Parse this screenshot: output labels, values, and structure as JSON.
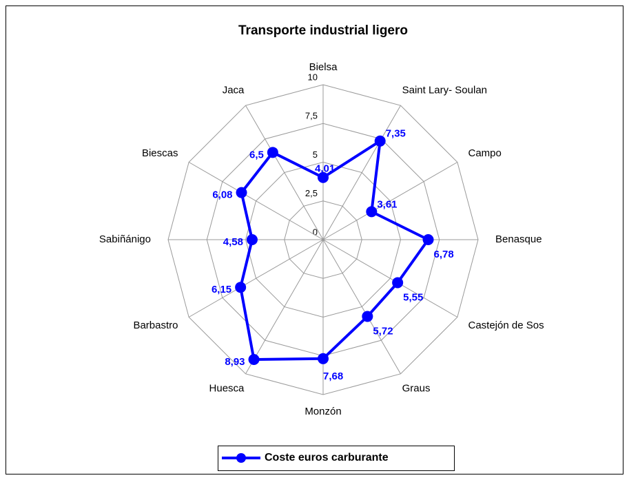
{
  "chart_data": {
    "type": "radar",
    "title": "Transporte industrial ligero",
    "categories": [
      "Bielsa",
      "Saint Lary- Soulan",
      "Campo",
      "Benasque",
      "Castejón de Sos",
      "Graus",
      "Monzón",
      "Huesca",
      "Barbastro",
      "Sabiñánigo",
      "Biescas",
      "Jaca"
    ],
    "series": [
      {
        "name": "Coste euros carburante",
        "color": "#0000ff",
        "values": [
          4.01,
          7.35,
          3.61,
          6.78,
          5.55,
          5.72,
          7.68,
          8.93,
          6.15,
          4.58,
          6.08,
          6.5
        ],
        "value_labels": [
          "4,01",
          "7,35",
          "3,61",
          "6,78",
          "5,55",
          "5,72",
          "7,68",
          "8,93",
          "6,15",
          "4,58",
          "6,08",
          "6,5"
        ]
      }
    ],
    "ylim": [
      0,
      10
    ],
    "yticks": [
      0,
      {
        "value": 2.5,
        "label": "2,5"
      },
      5,
      {
        "value": 7.5,
        "label": "7,5"
      },
      10
    ],
    "grid": true,
    "legend": "bottom"
  }
}
